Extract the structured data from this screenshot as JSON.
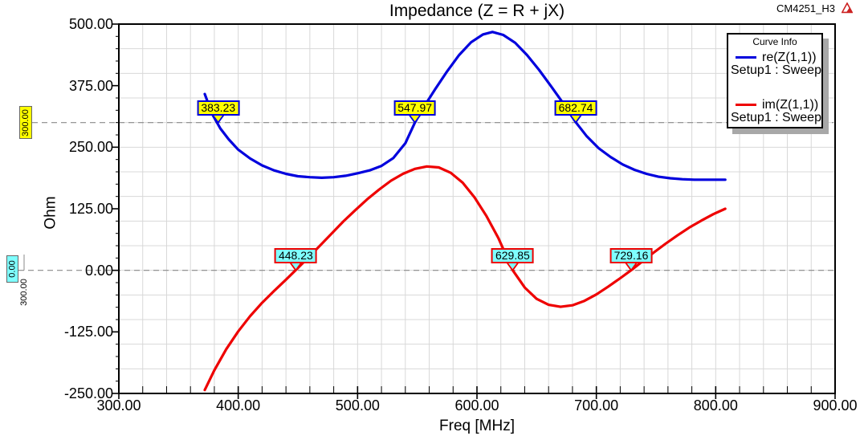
{
  "window": {
    "doc_name": "CM4251_H3",
    "logo_icon": "ansys-triangle-icon"
  },
  "chart_data": {
    "type": "line",
    "title": "Impedance (Z = R + jX)",
    "xlabel": "Freq [MHz]",
    "ylabel": "Ohm",
    "xlim": [
      300,
      900
    ],
    "ylim": [
      -250,
      500
    ],
    "grid": true,
    "x_grid_step_mhz": 20,
    "y_grid_step_ohm": 50,
    "x_ticks": [
      300,
      400,
      500,
      600,
      700,
      800,
      900
    ],
    "x_tick_labels": [
      "300.00",
      "400.00",
      "500.00",
      "600.00",
      "700.00",
      "800.00",
      "900.00"
    ],
    "y_ticks": [
      500,
      375,
      250,
      125,
      0,
      -125,
      -250
    ],
    "y_tick_labels": [
      "500.00",
      "375.00",
      "250.00",
      "125.00",
      "0.00",
      "-125.00",
      "-250.00"
    ],
    "legend": {
      "title": "Curve Info",
      "position": "top-right",
      "entries": [
        {
          "label": "re(Z(1,1))",
          "sublabel": "Setup1 : Sweep",
          "color": "#0000dd"
        },
        {
          "label": "im(Z(1,1))",
          "sublabel": "Setup1 : Sweep",
          "color": "#ee0000"
        }
      ]
    },
    "series": [
      {
        "name": "re(Z(1,1))",
        "setup": "Setup1 : Sweep",
        "color": "#0000dd",
        "x": [
          372,
          378,
          385,
          392,
          400,
          410,
          420,
          430,
          440,
          450,
          460,
          470,
          480,
          490,
          500,
          510,
          520,
          530,
          540,
          548,
          555,
          565,
          575,
          585,
          595,
          605,
          613,
          622,
          632,
          642,
          652,
          662,
          672,
          683,
          692,
          702,
          712,
          722,
          732,
          742,
          752,
          762,
          772,
          782,
          792,
          800,
          808
        ],
        "y": [
          358,
          318,
          288,
          266,
          245,
          227,
          213,
          203,
          196,
          191,
          189,
          188,
          189,
          192,
          197,
          203,
          212,
          228,
          258,
          300,
          330,
          368,
          404,
          437,
          463,
          479,
          484,
          478,
          462,
          437,
          407,
          374,
          340,
          300,
          272,
          248,
          230,
          215,
          204,
          196,
          190,
          187,
          185,
          184,
          184,
          184,
          184
        ]
      },
      {
        "name": "im(Z(1,1))",
        "setup": "Setup1 : Sweep",
        "color": "#ee0000",
        "x": [
          372,
          380,
          390,
          400,
          410,
          420,
          430,
          440,
          448,
          458,
          468,
          478,
          488,
          498,
          508,
          518,
          528,
          538,
          548,
          558,
          568,
          578,
          588,
          598,
          608,
          618,
          630,
          640,
          650,
          660,
          670,
          680,
          690,
          700,
          710,
          720,
          729,
          738,
          748,
          758,
          768,
          778,
          788,
          798,
          808
        ],
        "y": [
          -243,
          -203,
          -160,
          -124,
          -93,
          -66,
          -42,
          -19,
          0,
          24,
          49,
          74,
          99,
          122,
          144,
          164,
          182,
          196,
          206,
          211,
          209,
          198,
          178,
          148,
          110,
          65,
          0,
          -35,
          -58,
          -70,
          -74,
          -71,
          -62,
          -49,
          -33,
          -16,
          0,
          17,
          36,
          54,
          71,
          87,
          101,
          114,
          125
        ]
      }
    ],
    "reference_lines": [
      {
        "axis_label": "300.00",
        "y": 300,
        "style": "dashed",
        "box_color": "#ffff00",
        "marker_border": "#0000dd",
        "markers": [
          {
            "label": "383.23",
            "x": 383.23
          },
          {
            "label": "547.97",
            "x": 547.97
          },
          {
            "label": "682.74",
            "x": 682.74
          }
        ]
      },
      {
        "axis_label": "0.00",
        "y": 0,
        "style": "dashed",
        "box_color": "#7fffff",
        "marker_border": "#ee0000",
        "markers": [
          {
            "label": "448.23",
            "x": 448.23
          },
          {
            "label": "629.85",
            "x": 629.85
          },
          {
            "label": "729.16",
            "x": 729.16
          }
        ]
      }
    ],
    "extra_axis_label": "300.00"
  },
  "colors": {
    "grid": "#d8d8d8",
    "axis": "#000000",
    "dashed_line": "#8a8a8a",
    "legend_shadow": "#a8a8a8",
    "logo_red": "#cc2222"
  }
}
